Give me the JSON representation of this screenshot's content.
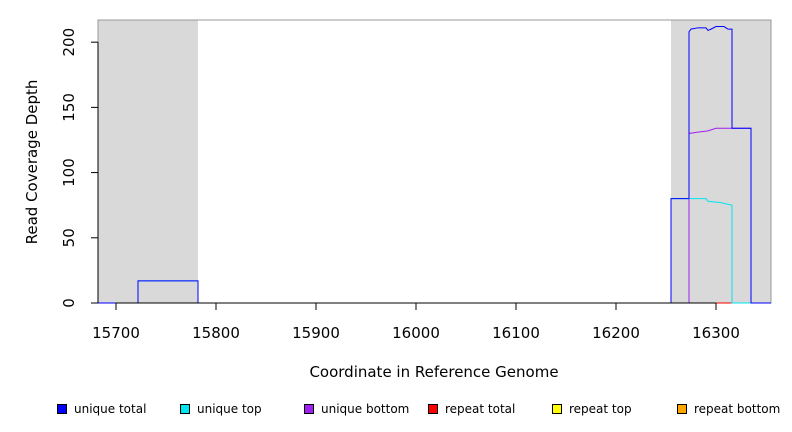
{
  "chart_data": {
    "type": "line",
    "title": "",
    "xlabel": "Coordinate in Reference Genome",
    "ylabel": "Read Coverage Depth",
    "xlim": [
      15682,
      16355
    ],
    "ylim": [
      0,
      217
    ],
    "x_ticks": [
      15700,
      15800,
      15900,
      16000,
      16100,
      16200,
      16300
    ],
    "y_ticks": [
      0,
      50,
      100,
      150,
      200
    ],
    "x_tick_labels": [
      "15700",
      "15800",
      "15900",
      "16000",
      "16100",
      "16200",
      "16300"
    ],
    "y_tick_labels": [
      "0",
      "50",
      "100",
      "150",
      "200"
    ],
    "shaded_regions": [
      {
        "x_start": 15682,
        "x_end": 15782,
        "color": "#d9d9d9"
      },
      {
        "x_start": 16255,
        "x_end": 16355,
        "color": "#d9d9d9"
      }
    ],
    "series": [
      {
        "name": "unique total",
        "color": "#0000ff",
        "points": [
          [
            15682,
            0
          ],
          [
            15722,
            0
          ],
          [
            15722,
            17
          ],
          [
            15782,
            17
          ],
          [
            15782,
            0
          ],
          [
            16255,
            0
          ],
          [
            16255,
            80
          ],
          [
            16273,
            80
          ],
          [
            16273,
            208
          ],
          [
            16275,
            210
          ],
          [
            16282,
            211
          ],
          [
            16290,
            211
          ],
          [
            16292,
            209
          ],
          [
            16295,
            210
          ],
          [
            16300,
            212
          ],
          [
            16308,
            212
          ],
          [
            16312,
            210
          ],
          [
            16316,
            210
          ],
          [
            16316,
            134
          ],
          [
            16335,
            134
          ],
          [
            16335,
            0
          ],
          [
            16355,
            0
          ]
        ]
      },
      {
        "name": "unique top",
        "color": "#00e5ee",
        "points": [
          [
            15682,
            0
          ],
          [
            15722,
            0
          ],
          [
            15722,
            17
          ],
          [
            15782,
            17
          ],
          [
            15782,
            0
          ],
          [
            16255,
            0
          ],
          [
            16255,
            80
          ],
          [
            16290,
            80
          ],
          [
            16292,
            78
          ],
          [
            16305,
            77
          ],
          [
            16310,
            76
          ],
          [
            16316,
            75
          ],
          [
            16316,
            0
          ],
          [
            16355,
            0
          ]
        ]
      },
      {
        "name": "unique bottom",
        "color": "#a020f0",
        "points": [
          [
            15682,
            0
          ],
          [
            16273,
            0
          ],
          [
            16273,
            130
          ],
          [
            16282,
            131
          ],
          [
            16292,
            132
          ],
          [
            16300,
            134
          ],
          [
            16335,
            134
          ],
          [
            16335,
            0
          ],
          [
            16355,
            0
          ]
        ]
      },
      {
        "name": "repeat total",
        "color": "#ff0000",
        "points": [
          [
            15682,
            0
          ],
          [
            16355,
            0
          ]
        ]
      },
      {
        "name": "repeat top",
        "color": "#ffff00",
        "points": [
          [
            15682,
            0
          ],
          [
            16355,
            0
          ]
        ]
      },
      {
        "name": "repeat bottom",
        "color": "#ffa500",
        "points": [
          [
            15682,
            0
          ],
          [
            16355,
            0
          ]
        ]
      }
    ],
    "legend_position": "bottom"
  }
}
